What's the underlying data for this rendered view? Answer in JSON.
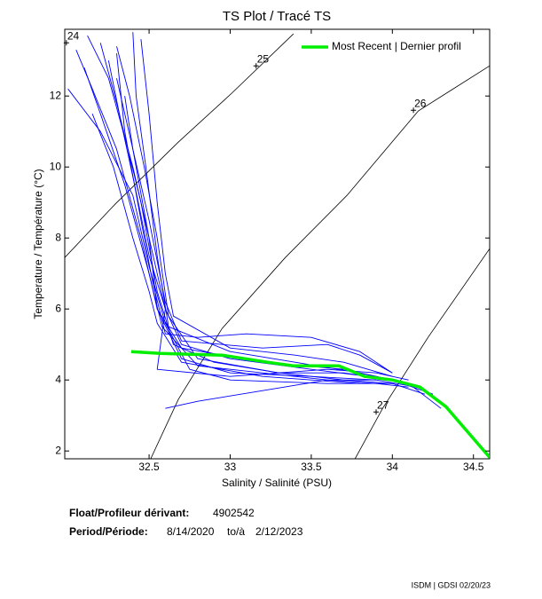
{
  "chart_data": {
    "type": "line",
    "title": "TS Plot / Tracé TS",
    "x_label": "Salinity / Salinité (PSU)",
    "y_label": "Temperature / Température (°C)",
    "xlim": [
      31.98,
      34.6
    ],
    "ylim": [
      1.78,
      13.88
    ],
    "xticks": [
      32.5,
      33,
      33.5,
      34,
      34.5
    ],
    "yticks": [
      2,
      4,
      6,
      8,
      10,
      12
    ],
    "grid": false,
    "legend": "upper right",
    "contours": [
      {
        "label": "24",
        "label_at": [
          31.99,
          13.5
        ],
        "x": [],
        "values": []
      },
      {
        "label": "25",
        "label_at": [
          33.16,
          12.85
        ],
        "x": [
          31.98,
          32.29,
          32.68,
          33.01,
          33.39
        ],
        "values": [
          7.45,
          8.95,
          10.7,
          12.08,
          13.75
        ]
      },
      {
        "label": "26",
        "label_at": [
          34.13,
          11.6
        ],
        "x": [
          32.51,
          32.68,
          32.95,
          33.34,
          33.72,
          34.16,
          34.6
        ],
        "values": [
          1.78,
          3.45,
          5.45,
          7.45,
          9.2,
          11.58,
          12.85
        ]
      },
      {
        "label": "27",
        "label_at": [
          33.9,
          3.1
        ],
        "x": [
          33.77,
          33.94,
          34.22,
          34.6
        ],
        "values": [
          1.78,
          3.2,
          5.2,
          7.7
        ]
      }
    ],
    "series": [
      {
        "color": "#0000ff",
        "x": [
          32.12,
          32.25,
          32.4,
          32.5,
          32.6,
          32.7,
          33.0,
          33.5,
          33.85,
          34.1,
          34.3
        ],
        "values": [
          13.7,
          12.5,
          10,
          8,
          6,
          5.0,
          4.6,
          4.3,
          4.1,
          3.9,
          3.2
        ]
      },
      {
        "color": "#0000ff",
        "x": [
          32.2,
          32.3,
          32.45,
          32.55,
          32.65,
          32.9,
          33.3,
          33.7,
          34.0,
          34.2
        ],
        "values": [
          13.5,
          11.8,
          9,
          6.5,
          5.0,
          4.5,
          4.2,
          4.0,
          3.9,
          3.6
        ]
      },
      {
        "color": "#0000ff",
        "x": [
          32.4,
          32.42,
          32.48,
          32.55,
          32.62,
          33.0,
          33.4,
          33.8,
          34.1
        ],
        "values": [
          13.8,
          12,
          10,
          7.5,
          5.5,
          4.8,
          4.5,
          4.2,
          3.9
        ]
      },
      {
        "color": "#0000ff",
        "x": [
          32.1,
          32.2,
          32.35,
          32.5,
          32.58,
          32.8,
          33.2,
          33.6,
          33.9
        ],
        "values": [
          12.8,
          11.5,
          9.5,
          7,
          5.5,
          4.4,
          4.2,
          4.0,
          4.0
        ]
      },
      {
        "color": "#0000ff",
        "x": [
          32.3,
          32.35,
          32.45,
          32.52,
          32.6,
          32.8,
          33.1,
          33.5,
          33.8,
          34.0
        ],
        "values": [
          13.2,
          11,
          8.5,
          6.8,
          5.3,
          5.2,
          5.3,
          5.2,
          4.8,
          4.2
        ]
      },
      {
        "color": "#0000ff",
        "x": [
          32.05,
          32.15,
          32.3,
          32.45,
          32.55,
          32.7,
          33.2,
          33.7,
          34.0,
          34.25
        ],
        "values": [
          13.3,
          12.2,
          10.5,
          8,
          6,
          4.9,
          4.5,
          4.3,
          4.0,
          3.6
        ]
      },
      {
        "color": "#0000ff",
        "x": [
          32.3,
          32.4,
          32.5,
          32.55,
          32.7,
          33.0,
          33.5,
          33.9,
          34.15
        ],
        "values": [
          12.5,
          10.5,
          8,
          6,
          4.6,
          4.2,
          4.1,
          4.0,
          3.8
        ]
      },
      {
        "color": "#0000ff",
        "x": [
          32.45,
          32.5,
          32.55,
          32.6,
          32.65,
          33.0,
          33.4,
          33.7,
          34.0
        ],
        "values": [
          13.6,
          11.5,
          9,
          7,
          5.8,
          4.9,
          4.7,
          4.5,
          4.1
        ]
      },
      {
        "color": "#0000ff",
        "x": [
          32.0,
          32.2,
          32.4,
          32.5,
          32.6,
          32.75,
          33.0,
          33.6,
          34.0
        ],
        "values": [
          12.2,
          11,
          9.2,
          7.2,
          5.6,
          4.3,
          4.0,
          3.9,
          3.9
        ]
      },
      {
        "color": "#0000ff",
        "x": [
          32.25,
          32.33,
          32.42,
          32.5,
          32.6,
          32.55,
          33.0,
          33.6,
          33.9,
          34.1
        ],
        "values": [
          13.0,
          11.2,
          9.3,
          7.5,
          6.0,
          4.3,
          4.1,
          4.3,
          4.2,
          4.0
        ]
      },
      {
        "color": "#0000ff",
        "x": [
          32.35,
          32.4,
          32.5,
          32.6,
          32.7,
          33.2,
          33.6,
          33.8,
          34.0
        ],
        "values": [
          12.0,
          10.5,
          8.5,
          6.2,
          5.1,
          4.9,
          5.0,
          4.7,
          4.2
        ]
      },
      {
        "color": "#0000ff",
        "x": [
          32.6,
          32.8,
          33.2,
          33.6,
          33.9,
          34.1
        ],
        "values": [
          3.2,
          3.4,
          3.7,
          4.0,
          3.9,
          3.8
        ]
      },
      {
        "color": "#0000ff",
        "x": [
          32.3,
          32.38,
          32.47,
          32.55,
          32.62,
          32.8,
          33.3,
          33.7,
          34.0
        ],
        "values": [
          13.4,
          12,
          10,
          8,
          5.8,
          4.6,
          4.2,
          4.2,
          4.0
        ]
      },
      {
        "color": "#0000ff",
        "x": [
          32.15,
          32.28,
          32.4,
          32.5,
          32.55,
          32.7,
          33.2,
          33.8
        ],
        "values": [
          11.5,
          10,
          8,
          6.5,
          5.6,
          4.5,
          4.1,
          3.9
        ]
      },
      {
        "name": "Most Recent | Dernier profil",
        "color": "#00ee00",
        "x": [
          32.39,
          32.57,
          32.95,
          33.23,
          33.39,
          33.67,
          33.83,
          34.0,
          34.17,
          34.33,
          34.6
        ],
        "values": [
          4.8,
          4.75,
          4.7,
          4.5,
          4.4,
          4.4,
          4.1,
          4.0,
          3.8,
          3.25,
          1.82
        ]
      }
    ]
  },
  "info": {
    "float_label": "Float/Profileur dérivant:",
    "float_id": "4902542",
    "period_label": "Period/Période:",
    "start": "8/14/2020",
    "to": "to/à",
    "end": "2/12/2023",
    "footer": "ISDM | GDSI 02/20/23"
  }
}
